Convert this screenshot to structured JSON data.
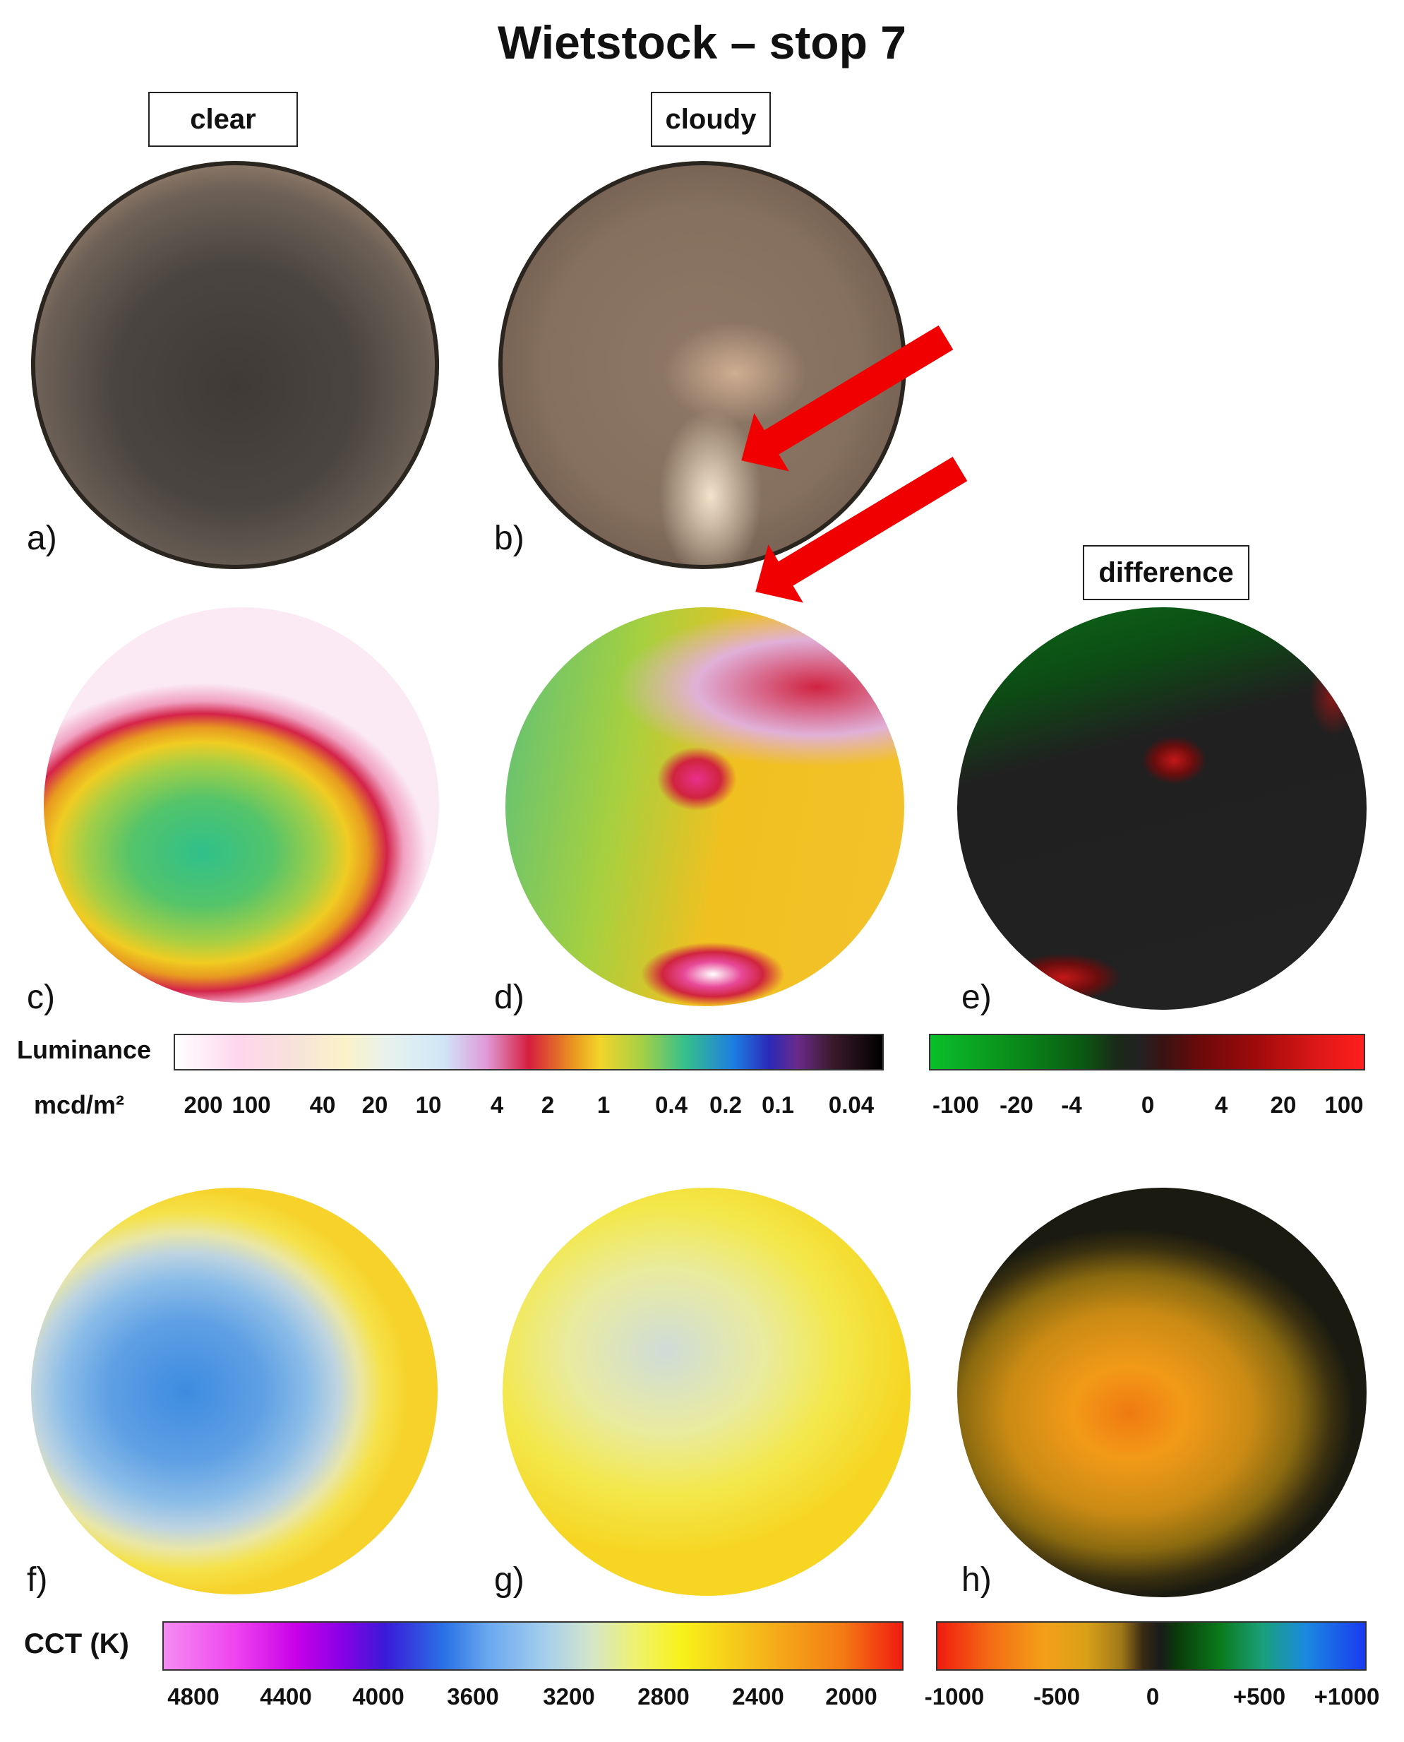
{
  "title": "Wietstock – stop 7",
  "column_labels": {
    "clear": "clear",
    "cloudy": "cloudy",
    "difference": "difference"
  },
  "panels": [
    "a)",
    "b)",
    "c)",
    "d)",
    "e)",
    "f)",
    "g)",
    "h)"
  ],
  "luminance_scale": {
    "title": "Luminance",
    "unit": "mcd/m²",
    "ticks": [
      "200",
      "100",
      "40",
      "20",
      "10",
      "4",
      "2",
      "1",
      "0.4",
      "0.2",
      "0.1",
      "0.04"
    ]
  },
  "luminance_difference_scale": {
    "ticks": [
      "-100",
      "-20",
      "-4",
      "0",
      "4",
      "20",
      "100"
    ]
  },
  "cct_scale": {
    "title": "CCT (K)",
    "ticks": [
      "4800",
      "4400",
      "4000",
      "3600",
      "3200",
      "2800",
      "2400",
      "2000"
    ]
  },
  "cct_difference_scale": {
    "ticks": [
      "-1000",
      "-500",
      "0",
      "+500",
      "+1000"
    ]
  },
  "colors": {
    "arrow": "#f00000",
    "background": "#ffffff"
  }
}
